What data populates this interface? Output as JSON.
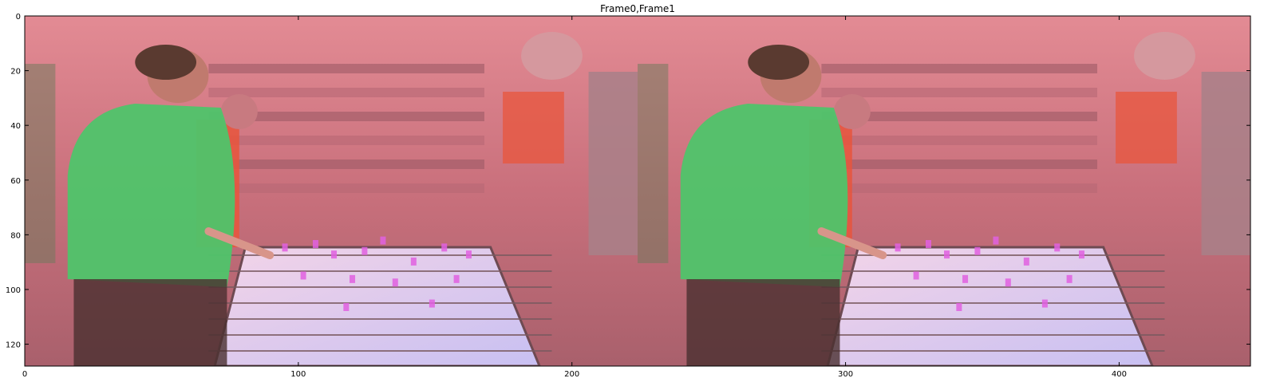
{
  "chart_data": {
    "type": "image",
    "title": "Frame0,Frame1",
    "xlabel": "",
    "ylabel": "",
    "xlim": [
      0,
      448
    ],
    "ylim": [
      128,
      0
    ],
    "xticks": [
      0,
      100,
      200,
      300,
      400
    ],
    "yticks": [
      0,
      20,
      40,
      60,
      80,
      100,
      120
    ],
    "frames": [
      {
        "name": "Frame0",
        "x_start": 0,
        "x_end": 224
      },
      {
        "name": "Frame1",
        "x_start": 224,
        "x_end": 448
      }
    ],
    "grid": false
  },
  "colors": {
    "tint": "#e88a9a",
    "shirt_green": "#4fc46a",
    "shirt_orange": "#e8553c",
    "table_surface": "#d9c8f0",
    "players_pink": "#e060e0"
  }
}
